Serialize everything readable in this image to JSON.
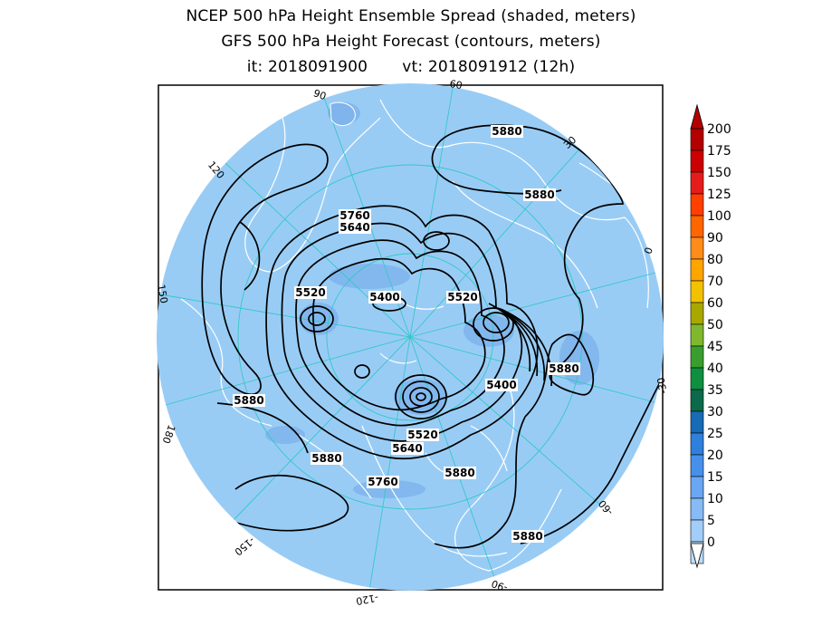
{
  "header": {
    "title_line1": "NCEP 500 hPa Height Ensemble Spread (shaded, meters)",
    "title_line2": "GFS 500 hPa Height Forecast (contours, meters)",
    "init_time": "it: 2018091900",
    "valid_time": "vt: 2018091912 (12h)"
  },
  "map": {
    "projection": "polar-stereographic-north",
    "background_color": "#99ccf5",
    "outside_color": "#ffffff",
    "coastline_color": "#ffffff",
    "graticule_color": "#33c8c8",
    "contour_color": "#000000",
    "longitude_labels": [
      "60",
      "30",
      "0",
      "-30",
      "-60",
      "-90",
      "-120",
      "-150",
      "180",
      "150",
      "120",
      "90"
    ],
    "contour_labels": [
      "5880",
      "5880",
      "5760",
      "5640",
      "5520",
      "5400",
      "5520",
      "5400",
      "5880",
      "5880",
      "5520",
      "5640",
      "5760",
      "5880",
      "5880",
      "5880"
    ]
  },
  "colorbar": {
    "levels": [
      "200",
      "175",
      "150",
      "125",
      "100",
      "90",
      "80",
      "70",
      "60",
      "50",
      "45",
      "40",
      "35",
      "30",
      "25",
      "20",
      "15",
      "10",
      "5",
      "0"
    ],
    "colors": [
      "#b30000",
      "#cc0000",
      "#e61c1c",
      "#ff4000",
      "#ff6600",
      "#ff8c1a",
      "#ffa500",
      "#f2c200",
      "#a8a800",
      "#7fb82e",
      "#3a9e2e",
      "#0f8f40",
      "#0a6a4a",
      "#186bb4",
      "#2f7fdc",
      "#4690ea",
      "#6aa7f2",
      "#86bbf5",
      "#a2cdf8",
      "#bcdcf9"
    ]
  }
}
